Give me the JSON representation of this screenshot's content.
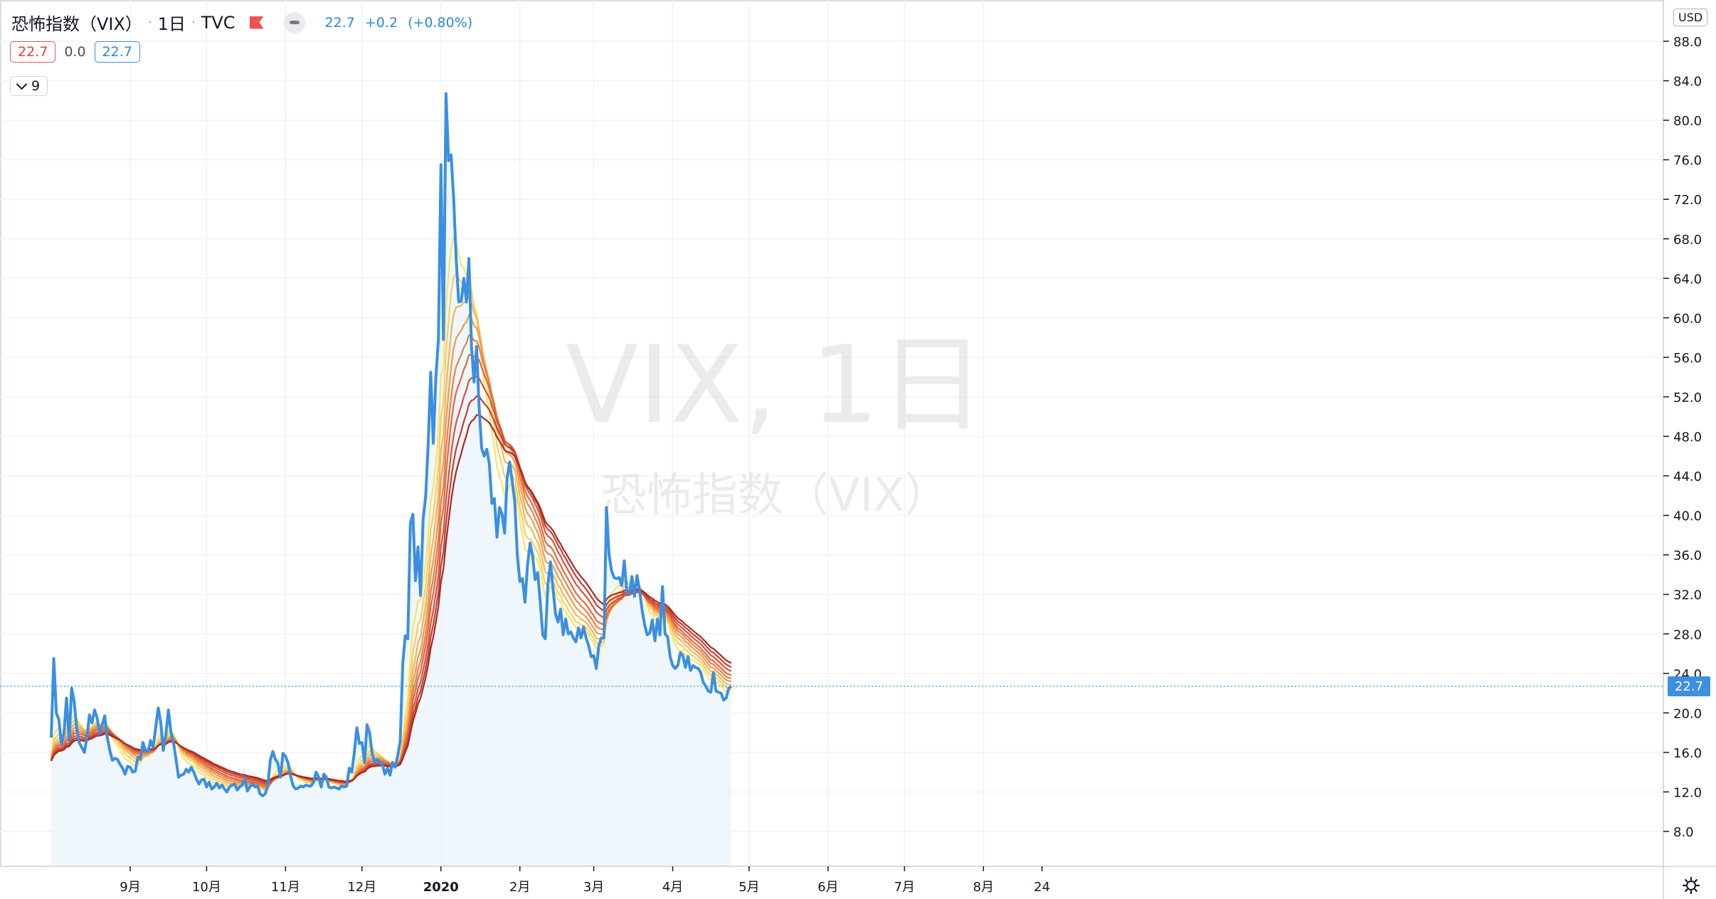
{
  "legend": {
    "title": "恐怖指数（VIX）",
    "interval": "1日",
    "exchange": "TVC",
    "last": "22.7",
    "change": "+0.2",
    "change_pct": "(+0.80%)"
  },
  "indicator": {
    "v1": "22.7",
    "v2": "0.0",
    "v3": "22.7",
    "collapsed_count": "9"
  },
  "currency": "USD",
  "last_price_label": "22.7",
  "watermark": {
    "symbol": "VIX, 1日",
    "description": "恐怖指数（VIX）"
  },
  "colors": {
    "price_line": "#3b8fe0",
    "area_fill": "#eaf3fb",
    "ribbon": [
      "#f7e468",
      "#f6cf62",
      "#f3b457",
      "#ef9a4d",
      "#e98045",
      "#e2683e",
      "#d65339",
      "#c53f31",
      "#a92a23"
    ]
  },
  "chart_data": {
    "type": "line",
    "title": "恐怖指数（VIX）",
    "ylim": [
      5.5,
      90
    ],
    "yticks": [
      8.0,
      12.0,
      16.0,
      20.0,
      24.0,
      28.0,
      32.0,
      36.0,
      40.0,
      44.0,
      48.0,
      52.0,
      56.0,
      60.0,
      64.0,
      68.0,
      72.0,
      76.0,
      80.0,
      84.0,
      88.0
    ],
    "xticks": [
      {
        "label": "9月",
        "day": 0
      },
      {
        "label": "10月",
        "day": 30
      },
      {
        "label": "11月",
        "day": 61
      },
      {
        "label": "12月",
        "day": 91
      },
      {
        "label": "2020",
        "day": 122,
        "bold": true
      },
      {
        "label": "2月",
        "day": 153
      },
      {
        "label": "3月",
        "day": 182
      },
      {
        "label": "4月",
        "day": 213
      },
      {
        "label": "5月",
        "day": 243
      },
      {
        "label": "6月",
        "day": 274
      },
      {
        "label": "7月",
        "day": 304
      },
      {
        "label": "8月",
        "day": 335
      },
      {
        "label": "24",
        "day": 358
      }
    ],
    "x_days_start": -31,
    "x_days_end": 358,
    "series": [
      {
        "name": "VIX",
        "points": [
          [
            -31,
            17.5
          ],
          [
            -30,
            25.5
          ],
          [
            -29,
            20.0
          ],
          [
            -28,
            19.3
          ],
          [
            -27,
            16.8
          ],
          [
            -26,
            18.0
          ],
          [
            -25,
            21.5
          ],
          [
            -24,
            17.2
          ],
          [
            -23,
            22.5
          ],
          [
            -22,
            21.2
          ],
          [
            -21,
            18.5
          ],
          [
            -20,
            17.0
          ],
          [
            -18,
            16.0
          ],
          [
            -17,
            17.5
          ],
          [
            -16,
            19.8
          ],
          [
            -15,
            19.0
          ],
          [
            -14,
            20.3
          ],
          [
            -13,
            19.5
          ],
          [
            -12,
            18.0
          ],
          [
            -11,
            18.8
          ],
          [
            -10,
            19.7
          ],
          [
            -9,
            17.5
          ],
          [
            -8,
            16.2
          ],
          [
            -7,
            15.2
          ],
          [
            -6,
            15.4
          ],
          [
            -5,
            15.3
          ],
          [
            -4,
            14.8
          ],
          [
            -3,
            14.4
          ],
          [
            -2,
            13.8
          ],
          [
            -1,
            14.6
          ],
          [
            0,
            14.5
          ],
          [
            1,
            14.0
          ],
          [
            2,
            14.1
          ],
          [
            3,
            15.5
          ],
          [
            4,
            15.3
          ],
          [
            5,
            17.0
          ],
          [
            6,
            16.2
          ],
          [
            7,
            16.1
          ],
          [
            8,
            17.2
          ],
          [
            9,
            16.5
          ],
          [
            10,
            18.5
          ],
          [
            11,
            20.5
          ],
          [
            12,
            19.0
          ],
          [
            13,
            16.2
          ],
          [
            14,
            17.8
          ],
          [
            15,
            20.3
          ],
          [
            16,
            18.0
          ],
          [
            17,
            17.0
          ],
          [
            18,
            15.3
          ],
          [
            19,
            13.5
          ],
          [
            20,
            13.7
          ],
          [
            21,
            13.8
          ],
          [
            22,
            14.3
          ],
          [
            23,
            14.0
          ],
          [
            24,
            14.5
          ],
          [
            25,
            14.0
          ],
          [
            26,
            13.3
          ],
          [
            27,
            12.8
          ],
          [
            28,
            13.2
          ],
          [
            29,
            13.3
          ],
          [
            30,
            12.5
          ],
          [
            31,
            13.0
          ],
          [
            32,
            12.3
          ],
          [
            33,
            12.5
          ],
          [
            34,
            12.9
          ],
          [
            35,
            12.4
          ],
          [
            36,
            12.7
          ],
          [
            37,
            12.3
          ],
          [
            38,
            12.0
          ],
          [
            39,
            12.5
          ],
          [
            40,
            12.7
          ],
          [
            41,
            12.8
          ],
          [
            42,
            12.2
          ],
          [
            43,
            12.5
          ],
          [
            44,
            12.7
          ],
          [
            45,
            13.3
          ],
          [
            46,
            12.1
          ],
          [
            47,
            12.5
          ],
          [
            48,
            12.8
          ],
          [
            49,
            12.5
          ],
          [
            50,
            12.6
          ],
          [
            51,
            11.8
          ],
          [
            52,
            11.6
          ],
          [
            53,
            11.8
          ],
          [
            54,
            12.6
          ],
          [
            55,
            15.2
          ],
          [
            56,
            16.1
          ],
          [
            57,
            15.3
          ],
          [
            58,
            14.9
          ],
          [
            59,
            13.5
          ],
          [
            60,
            15.9
          ],
          [
            61,
            15.6
          ],
          [
            62,
            14.9
          ],
          [
            63,
            13.6
          ],
          [
            64,
            12.6
          ],
          [
            65,
            12.3
          ],
          [
            66,
            12.4
          ],
          [
            67,
            12.6
          ],
          [
            68,
            12.5
          ],
          [
            69,
            12.7
          ],
          [
            70,
            12.6
          ],
          [
            71,
            12.6
          ],
          [
            72,
            13.0
          ],
          [
            73,
            14.0
          ],
          [
            74,
            13.5
          ],
          [
            75,
            12.5
          ],
          [
            76,
            13.8
          ],
          [
            77,
            13.5
          ],
          [
            78,
            12.5
          ],
          [
            79,
            12.4
          ],
          [
            80,
            12.5
          ],
          [
            81,
            12.4
          ],
          [
            82,
            12.3
          ],
          [
            83,
            12.6
          ],
          [
            84,
            12.5
          ],
          [
            85,
            12.6
          ],
          [
            86,
            14.4
          ],
          [
            87,
            14.0
          ],
          [
            88,
            16.0
          ],
          [
            89,
            18.5
          ],
          [
            90,
            16.9
          ],
          [
            91,
            17.0
          ],
          [
            92,
            15.0
          ],
          [
            93,
            18.8
          ],
          [
            94,
            18.0
          ],
          [
            95,
            15.9
          ],
          [
            96,
            15.0
          ],
          [
            97,
            15.3
          ],
          [
            98,
            15.0
          ],
          [
            99,
            14.8
          ],
          [
            100,
            13.8
          ],
          [
            101,
            14.4
          ],
          [
            102,
            13.7
          ],
          [
            103,
            15.0
          ],
          [
            104,
            14.5
          ],
          [
            105,
            15.6
          ],
          [
            106,
            17.1
          ],
          [
            107,
            25.0
          ],
          [
            108,
            27.8
          ],
          [
            109,
            27.5
          ],
          [
            110,
            39.2
          ],
          [
            111,
            40.1
          ],
          [
            112,
            33.4
          ],
          [
            113,
            36.8
          ],
          [
            114,
            31.9
          ],
          [
            115,
            39.6
          ],
          [
            116,
            41.9
          ],
          [
            117,
            47.3
          ],
          [
            118,
            54.5
          ],
          [
            119,
            47.3
          ],
          [
            120,
            53.9
          ],
          [
            121,
            57.8
          ],
          [
            122,
            75.5
          ],
          [
            123,
            57.8
          ],
          [
            124,
            82.7
          ],
          [
            125,
            75.9
          ],
          [
            126,
            76.5
          ],
          [
            127,
            72.0
          ],
          [
            128,
            66.0
          ],
          [
            129,
            61.6
          ],
          [
            130,
            61.7
          ],
          [
            131,
            64.0
          ],
          [
            132,
            61.6
          ],
          [
            133,
            66.0
          ],
          [
            134,
            57.1
          ],
          [
            135,
            53.5
          ],
          [
            136,
            57.1
          ],
          [
            137,
            50.9
          ],
          [
            138,
            46.8
          ],
          [
            139,
            46.0
          ],
          [
            140,
            46.7
          ],
          [
            141,
            45.2
          ],
          [
            142,
            41.2
          ],
          [
            143,
            41.7
          ],
          [
            144,
            37.8
          ],
          [
            145,
            40.8
          ],
          [
            146,
            40.1
          ],
          [
            147,
            38.2
          ],
          [
            148,
            43.8
          ],
          [
            149,
            45.4
          ],
          [
            150,
            43.4
          ],
          [
            151,
            41.4
          ],
          [
            152,
            35.9
          ],
          [
            153,
            33.3
          ],
          [
            154,
            33.6
          ],
          [
            155,
            31.2
          ],
          [
            156,
            35.0
          ],
          [
            157,
            37.2
          ],
          [
            158,
            35.9
          ],
          [
            159,
            33.5
          ],
          [
            160,
            34.2
          ],
          [
            161,
            31.2
          ],
          [
            162,
            27.9
          ],
          [
            163,
            27.5
          ],
          [
            164,
            33.0
          ],
          [
            165,
            35.3
          ],
          [
            166,
            32.6
          ],
          [
            167,
            30.0
          ],
          [
            168,
            29.2
          ],
          [
            169,
            30.5
          ],
          [
            170,
            27.9
          ],
          [
            171,
            29.5
          ],
          [
            172,
            28.0
          ],
          [
            173,
            28.2
          ],
          [
            174,
            27.6
          ],
          [
            175,
            27.2
          ],
          [
            176,
            28.6
          ],
          [
            177,
            27.6
          ],
          [
            178,
            28.7
          ],
          [
            179,
            27.6
          ],
          [
            180,
            26.8
          ],
          [
            181,
            25.7
          ],
          [
            182,
            25.8
          ],
          [
            183,
            24.5
          ],
          [
            184,
            26.8
          ],
          [
            185,
            27.6
          ],
          [
            186,
            27.6
          ],
          [
            187,
            40.8
          ],
          [
            188,
            36.1
          ],
          [
            189,
            34.4
          ],
          [
            190,
            33.7
          ],
          [
            191,
            33.6
          ],
          [
            192,
            33.7
          ],
          [
            193,
            32.9
          ],
          [
            194,
            35.4
          ],
          [
            195,
            32.2
          ],
          [
            196,
            32.1
          ],
          [
            197,
            33.8
          ],
          [
            198,
            31.8
          ],
          [
            199,
            33.9
          ],
          [
            200,
            32.4
          ],
          [
            201,
            30.4
          ],
          [
            202,
            28.9
          ],
          [
            203,
            27.9
          ],
          [
            204,
            28.1
          ],
          [
            205,
            29.4
          ],
          [
            206,
            27.3
          ],
          [
            207,
            29.5
          ],
          [
            208,
            27.9
          ],
          [
            209,
            32.8
          ],
          [
            210,
            28.0
          ],
          [
            211,
            27.7
          ],
          [
            212,
            25.7
          ],
          [
            213,
            24.8
          ],
          [
            214,
            24.5
          ],
          [
            215,
            24.8
          ],
          [
            216,
            26.1
          ],
          [
            217,
            25.8
          ],
          [
            218,
            24.6
          ],
          [
            219,
            25.7
          ],
          [
            220,
            24.3
          ],
          [
            221,
            24.8
          ],
          [
            222,
            24.6
          ],
          [
            223,
            24.5
          ],
          [
            224,
            24.1
          ],
          [
            225,
            23.1
          ],
          [
            226,
            22.7
          ],
          [
            227,
            22.2
          ],
          [
            228,
            22.1
          ],
          [
            229,
            24.1
          ],
          [
            230,
            22.2
          ],
          [
            231,
            22.1
          ],
          [
            232,
            22.0
          ],
          [
            233,
            21.3
          ],
          [
            234,
            21.5
          ],
          [
            235,
            22.5
          ],
          [
            236,
            22.7
          ]
        ]
      }
    ]
  }
}
